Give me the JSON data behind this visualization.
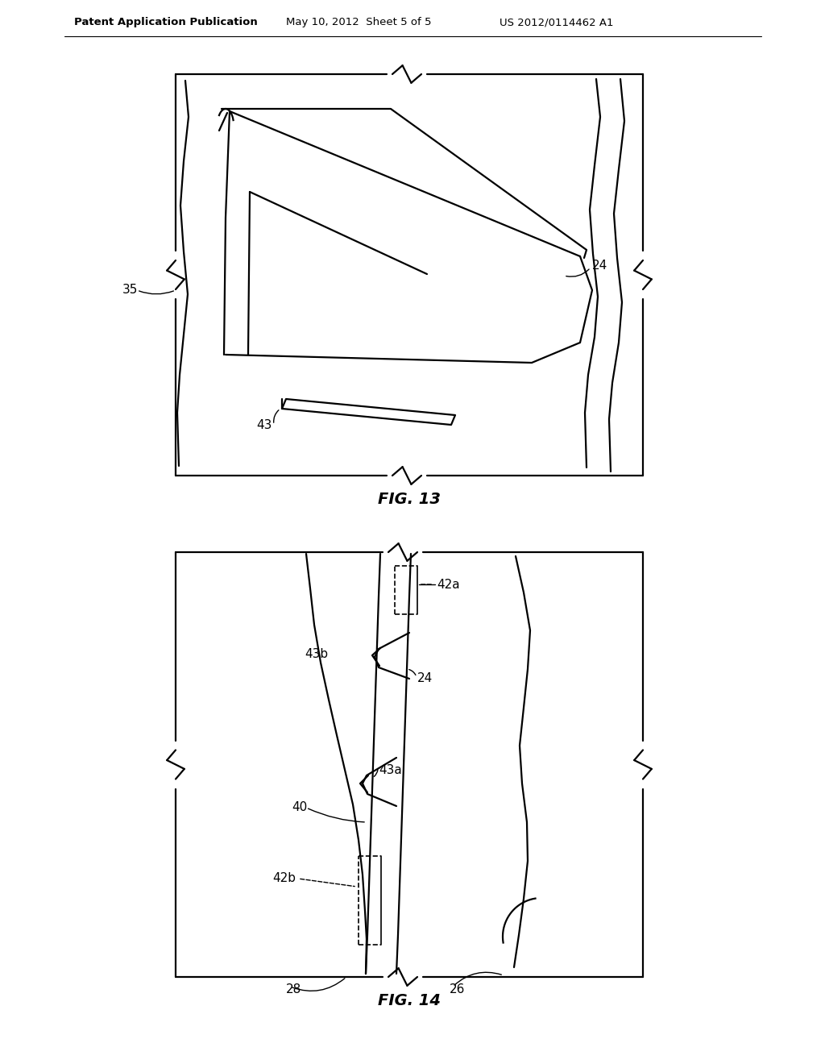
{
  "bg_color": "#ffffff",
  "line_color": "#000000",
  "header_left": "Patent Application Publication",
  "header_mid": "May 10, 2012  Sheet 5 of 5",
  "header_right": "US 2012/0114462 A1",
  "fig13_title": "FIG. 13",
  "fig14_title": "FIG. 14",
  "lw": 1.6
}
